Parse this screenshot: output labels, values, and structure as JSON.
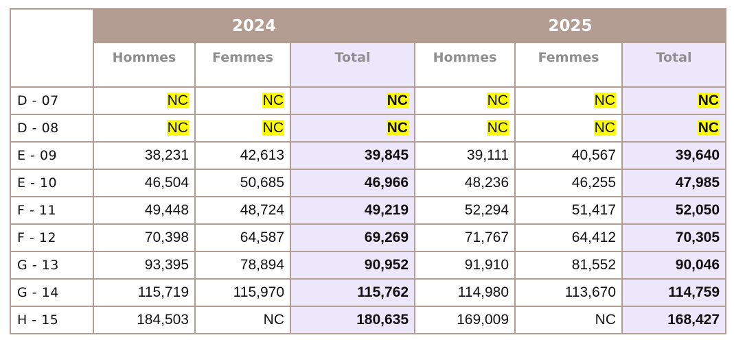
{
  "table": {
    "years": [
      "2024",
      "2025"
    ],
    "subheaders": [
      "Hommes",
      "Femmes",
      "Total",
      "Hommes",
      "Femmes",
      "Total"
    ],
    "rows": [
      {
        "label": "D - 07",
        "values": [
          "NC",
          "NC",
          "NC",
          "NC",
          "NC",
          "NC"
        ],
        "highlight": [
          true,
          true,
          true,
          true,
          true,
          true
        ]
      },
      {
        "label": "D - 08",
        "values": [
          "NC",
          "NC",
          "NC",
          "NC",
          "NC",
          "NC"
        ],
        "highlight": [
          true,
          true,
          true,
          true,
          true,
          true
        ]
      },
      {
        "label": "E - 09",
        "values": [
          "38,231",
          "42,613",
          "39,845",
          "39,111",
          "40,567",
          "39,640"
        ]
      },
      {
        "label": "E - 10",
        "values": [
          "46,504",
          "50,685",
          "46,966",
          "48,236",
          "46,255",
          "47,985"
        ]
      },
      {
        "label": "F - 11",
        "values": [
          "49,448",
          "48,724",
          "49,219",
          "52,294",
          "51,417",
          "52,050"
        ]
      },
      {
        "label": "F - 12",
        "values": [
          "70,398",
          "64,587",
          "69,269",
          "71,767",
          "64,412",
          "70,305"
        ]
      },
      {
        "label": "G - 13",
        "values": [
          "93,395",
          "78,894",
          "90,952",
          "91,910",
          "81,552",
          "90,046"
        ]
      },
      {
        "label": "G - 14",
        "values": [
          "115,719",
          "115,970",
          "115,762",
          "114,980",
          "113,670",
          "114,759"
        ]
      },
      {
        "label": "H - 15",
        "values": [
          "184,503",
          "NC",
          "180,635",
          "169,009",
          "NC",
          "168,427"
        ]
      }
    ],
    "colors": {
      "header_bg": "#b39d93",
      "total_bg": "#ede7fb",
      "nc_highlight": "#ffff00",
      "subheader_text": "#8f8f8f"
    }
  }
}
